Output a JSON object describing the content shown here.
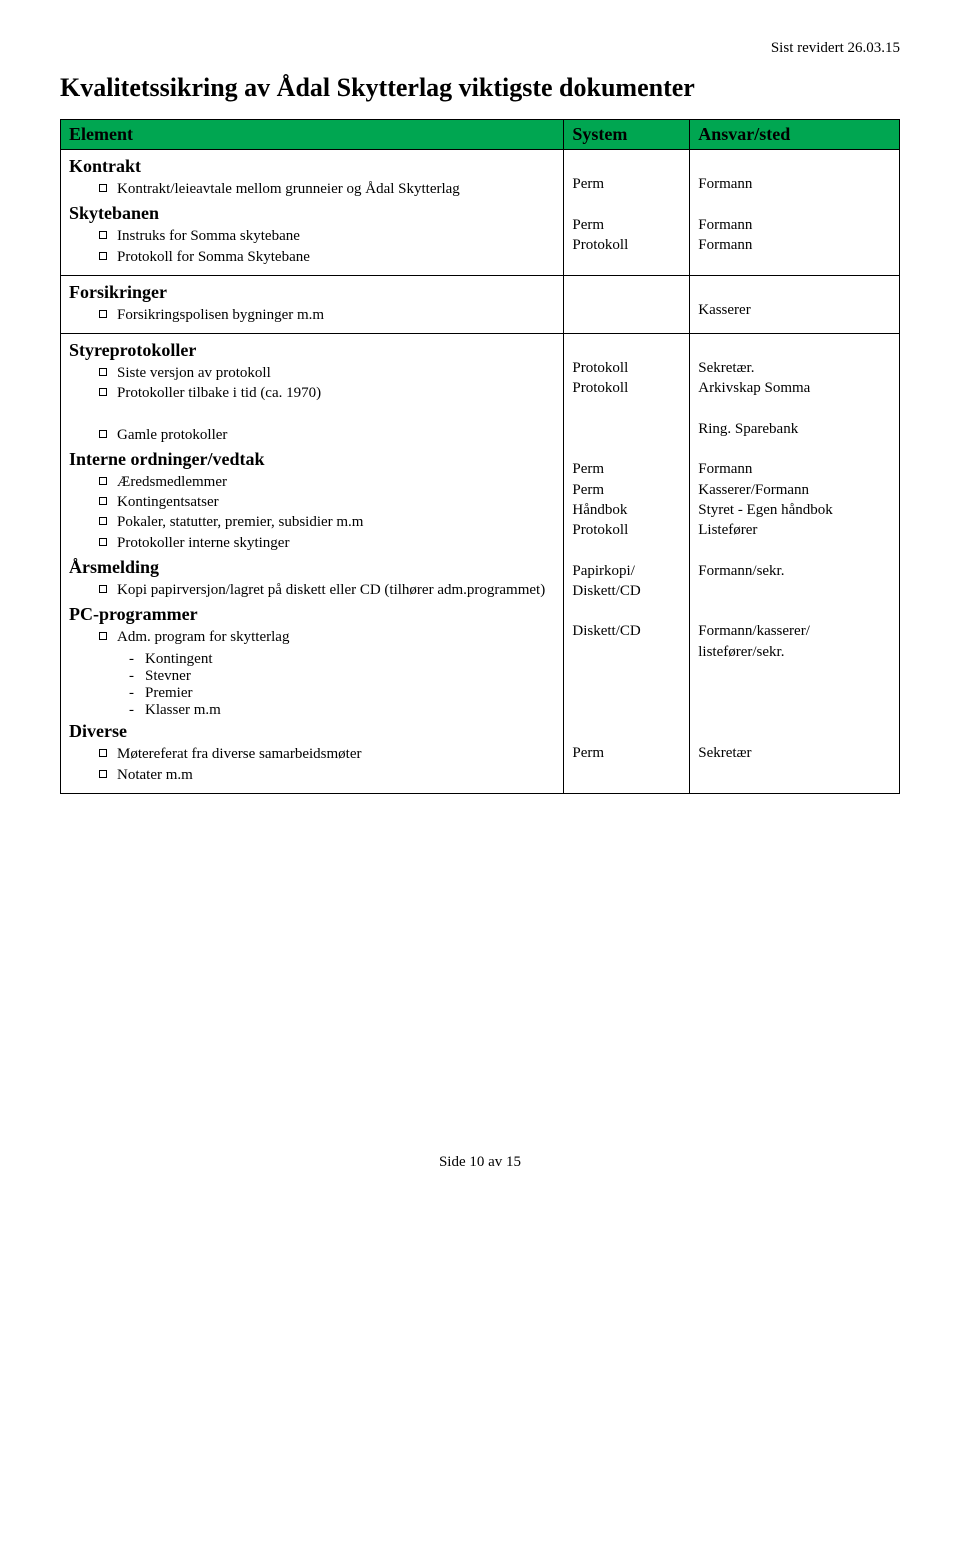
{
  "header_right": "Sist revidert 26.03.15",
  "main_title": "Kvalitetssikring av Ådal Skytterlag viktigste dokumenter",
  "table": {
    "header_bg": "#00a651",
    "cols": [
      "Element",
      "System",
      "Ansvar/sted"
    ]
  },
  "row1": {
    "h1": "Kontrakt",
    "b1": "Kontrakt/leieavtale mellom grunneier og Ådal Skytterlag",
    "h2": "Skytebanen",
    "b2a": "Instruks for Somma skytebane",
    "b2b": "Protokoll for Somma Skytebane",
    "sys1": "Perm",
    "sys2": "Perm",
    "sys3": "Protokoll",
    "ans1": "Formann",
    "ans2": "Formann",
    "ans3": "Formann"
  },
  "row2": {
    "h": "Forsikringer",
    "b": "Forsikringspolisen bygninger m.m",
    "ans": "Kasserer"
  },
  "row3": {
    "h1": "Styreprotokoller",
    "b1a": "Siste versjon av protokoll",
    "b1b": "Protokoller tilbake i tid (ca. 1970)",
    "b1c": "Gamle protokoller",
    "h2": "Interne ordninger/vedtak",
    "b2a": "Æredsmedlemmer",
    "b2b": "Kontingentsatser",
    "b2c": "Pokaler, statutter, premier, subsidier m.m",
    "b2d": "Protokoller interne skytinger",
    "h3": "Årsmelding",
    "b3": "Kopi papirversjon/lagret på diskett eller CD (tilhører adm.programmet)",
    "h4": "PC-programmer",
    "b4": "Adm. program for skytterlag",
    "d1": "Kontingent",
    "d2": "Stevner",
    "d3": "Premier",
    "d4": "Klasser m.m",
    "h5": "Diverse",
    "b5a": "Møtereferat fra diverse samarbeidsmøter",
    "b5b": "Notater m.m",
    "sys": {
      "s1": "Protokoll",
      "s2": "Protokoll",
      "s3": "Perm",
      "s4": "Perm",
      "s5": "Håndbok",
      "s6": "Protokoll",
      "s7a": "Papirkopi/",
      "s7b": "Diskett/CD",
      "s8": "Diskett/CD",
      "s9": "Perm"
    },
    "ans": {
      "a1": "Sekretær.",
      "a2": "Arkivskap Somma",
      "a3": "Ring. Sparebank",
      "a4": "Formann",
      "a5": "Kasserer/Formann",
      "a6": "Styret - Egen håndbok",
      "a7": "Listefører",
      "a8": "Formann/sekr.",
      "a9a": "Formann/kasserer/",
      "a9b": "listefører/sekr.",
      "a10": "Sekretær"
    }
  },
  "footer": "Side 10 av 15"
}
